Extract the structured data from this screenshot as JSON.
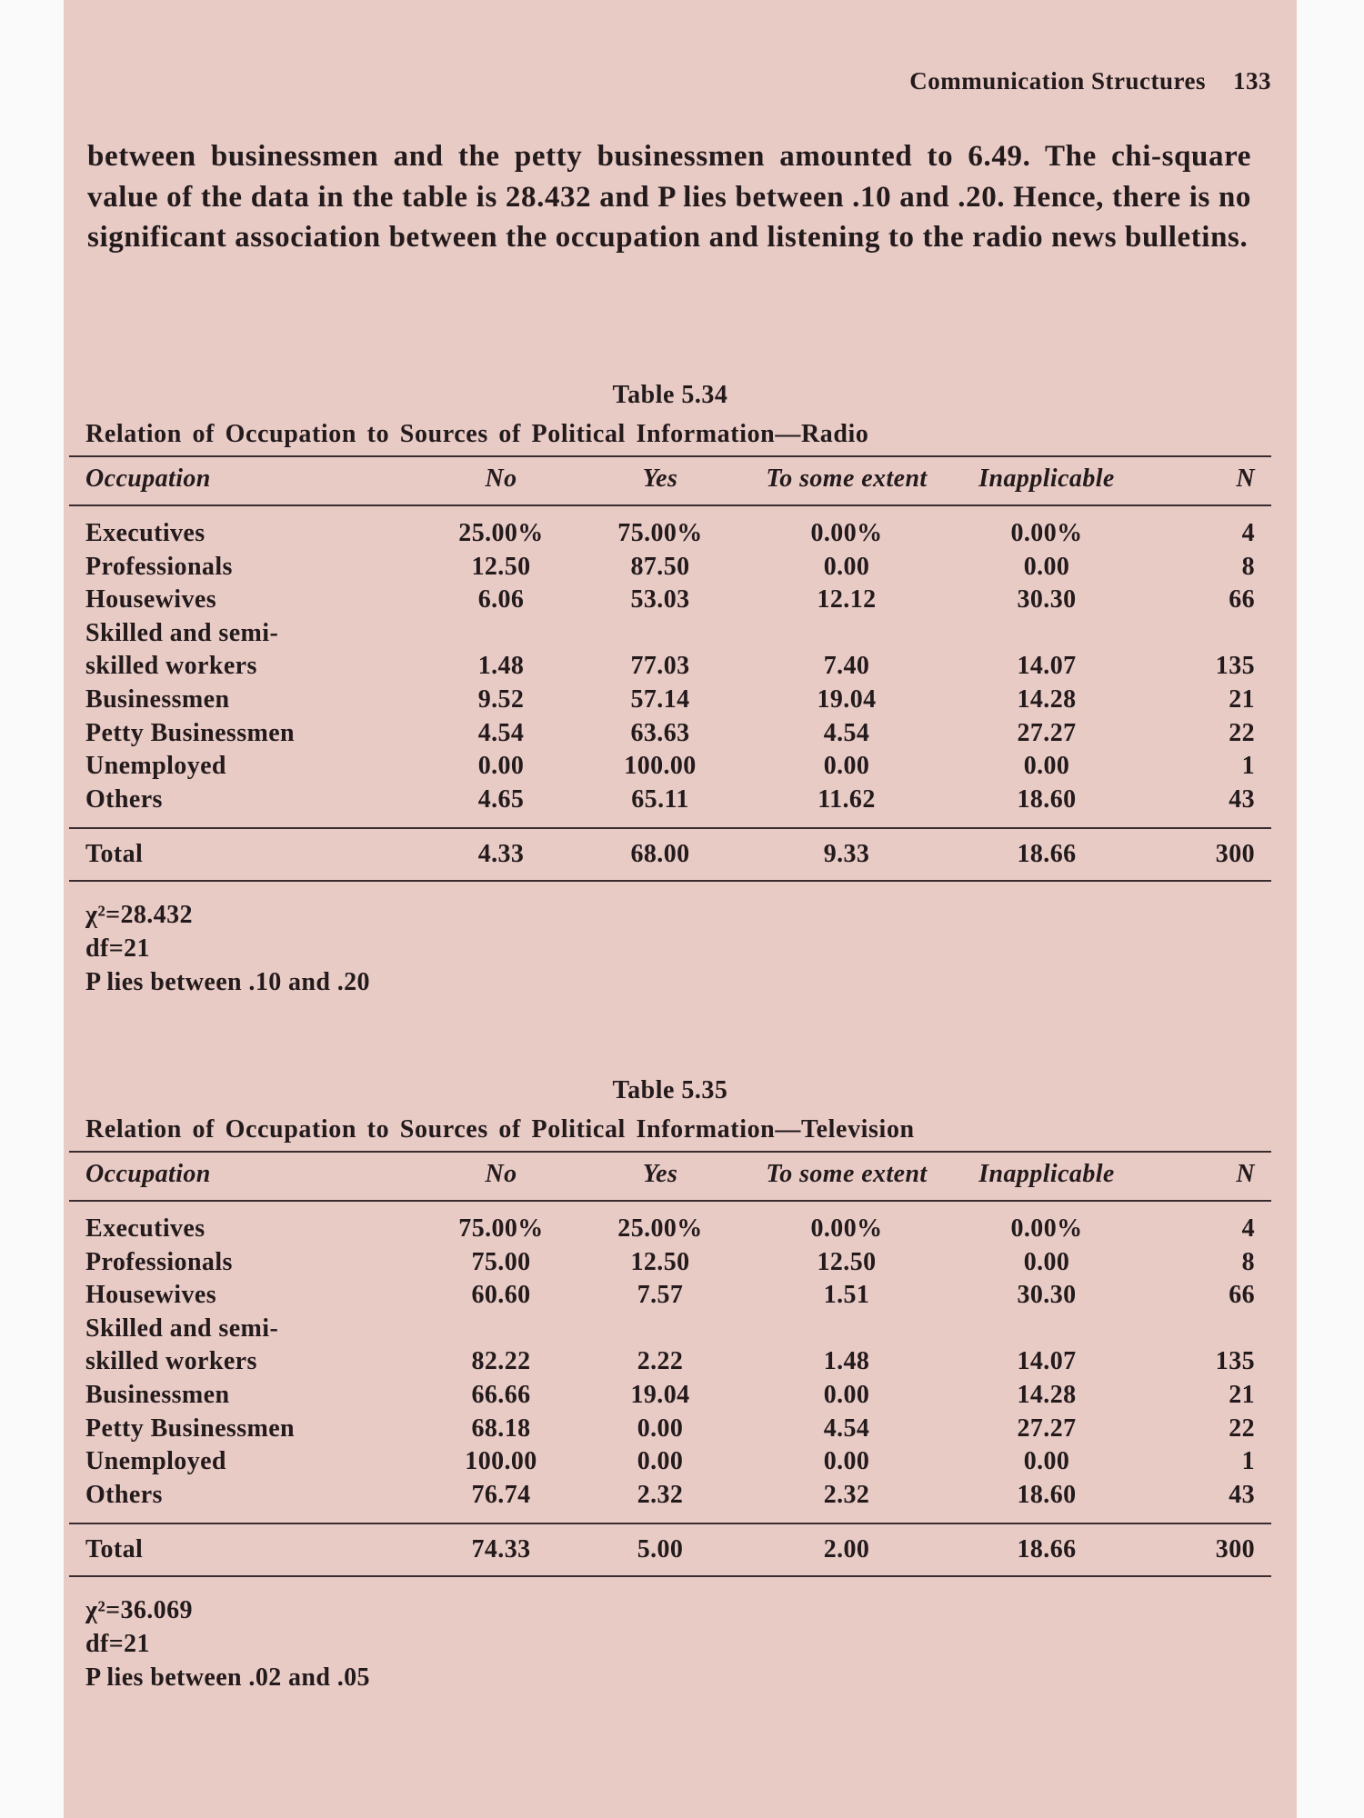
{
  "header": {
    "running_title": "Communication Structures",
    "page_number": "133"
  },
  "paragraph": "between businessmen and the petty businessmen amounted to 6.49. The chi-square value of the data in the table is 28.432 and P lies between .10 and .20. Hence, there is no significant association between the occupation and listening to the radio news bulletins.",
  "tables": [
    {
      "label": "Table 5.34",
      "title": "Relation of Occupation to Sources of Political Information—Radio",
      "columns": [
        "Occupation",
        "No",
        "Yes",
        "To some extent",
        "Inapplicable",
        "N"
      ],
      "rows": [
        [
          "Executives",
          "25.00%",
          "75.00%",
          "0.00%",
          "0.00%",
          "4"
        ],
        [
          "Professionals",
          "12.50",
          "87.50",
          "0.00",
          "0.00",
          "8"
        ],
        [
          "Housewives",
          "6.06",
          "53.03",
          "12.12",
          "30.30",
          "66"
        ],
        [
          "Skilled and semi-\nskilled workers",
          "1.48",
          "77.03",
          "7.40",
          "14.07",
          "135"
        ],
        [
          "Businessmen",
          "9.52",
          "57.14",
          "19.04",
          "14.28",
          "21"
        ],
        [
          "Petty Businessmen",
          "4.54",
          "63.63",
          "4.54",
          "27.27",
          "22"
        ],
        [
          "Unemployed",
          "0.00",
          "100.00",
          "0.00",
          "0.00",
          "1"
        ],
        [
          "Others",
          "4.65",
          "65.11",
          "11.62",
          "18.60",
          "43"
        ]
      ],
      "total": [
        "Total",
        "4.33",
        "68.00",
        "9.33",
        "18.66",
        "300"
      ],
      "notes": [
        "χ²=28.432",
        "df=21",
        "P lies between .10 and .20"
      ]
    },
    {
      "label": "Table 5.35",
      "title": "Relation of Occupation to Sources of Political Information—Television",
      "columns": [
        "Occupation",
        "No",
        "Yes",
        "To some extent",
        "Inapplicable",
        "N"
      ],
      "rows": [
        [
          "Executives",
          "75.00%",
          "25.00%",
          "0.00%",
          "0.00%",
          "4"
        ],
        [
          "Professionals",
          "75.00",
          "12.50",
          "12.50",
          "0.00",
          "8"
        ],
        [
          "Housewives",
          "60.60",
          "7.57",
          "1.51",
          "30.30",
          "66"
        ],
        [
          "Skilled and semi-\nskilled workers",
          "82.22",
          "2.22",
          "1.48",
          "14.07",
          "135"
        ],
        [
          "Businessmen",
          "66.66",
          "19.04",
          "0.00",
          "14.28",
          "21"
        ],
        [
          "Petty Businessmen",
          "68.18",
          "0.00",
          "4.54",
          "27.27",
          "22"
        ],
        [
          "Unemployed",
          "100.00",
          "0.00",
          "0.00",
          "0.00",
          "1"
        ],
        [
          "Others",
          "76.74",
          "2.32",
          "2.32",
          "18.60",
          "43"
        ]
      ],
      "total": [
        "Total",
        "74.33",
        "5.00",
        "2.00",
        "18.66",
        "300"
      ],
      "notes": [
        "χ²=36.069",
        "df=21",
        "P lies between .02 and .05"
      ]
    }
  ]
}
